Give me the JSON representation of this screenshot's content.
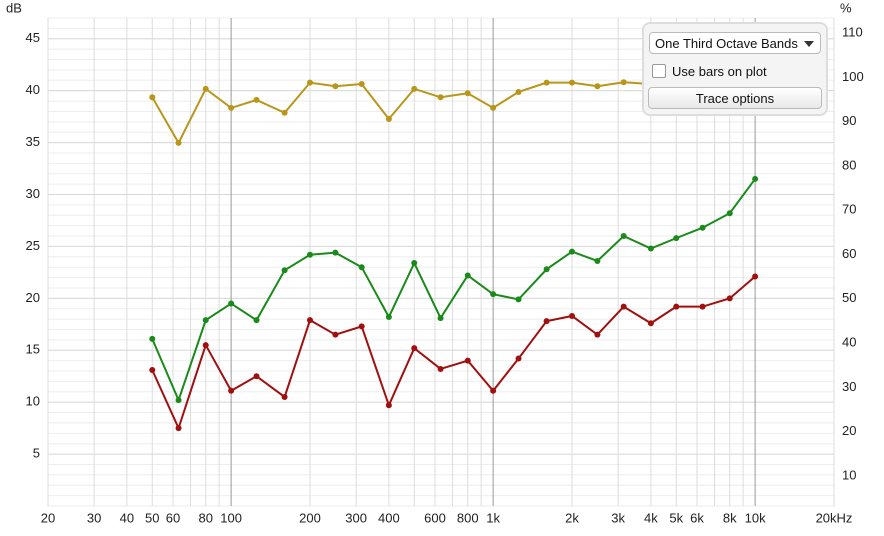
{
  "chart_data": {
    "type": "line",
    "y_label": "dB",
    "y2_label": "%",
    "x": [
      50,
      63,
      80,
      100,
      125,
      160,
      200,
      250,
      315,
      400,
      500,
      630,
      800,
      1000,
      1250,
      1600,
      2000,
      2500,
      3150,
      4000,
      5000,
      6300,
      8000,
      10000
    ],
    "series": [
      {
        "color": "#1a8a1a",
        "values": [
          16.1,
          10.2,
          17.9,
          19.5,
          17.9,
          22.7,
          24.2,
          24.4,
          23.0,
          18.2,
          23.4,
          18.1,
          22.2,
          20.4,
          19.9,
          22.8,
          24.5,
          23.6,
          26.0,
          24.8,
          25.8,
          26.8,
          28.2,
          31.5
        ]
      },
      {
        "color": "#a01010",
        "values": [
          13.1,
          7.5,
          15.5,
          11.1,
          12.5,
          10.5,
          17.9,
          16.5,
          17.3,
          9.7,
          15.2,
          13.2,
          14.0,
          11.1,
          14.2,
          17.8,
          18.3,
          16.5,
          19.2,
          17.6,
          19.2,
          19.2,
          20.0,
          22.1
        ]
      },
      {
        "color": "#b8961a",
        "axis": "y2",
        "values": [
          95.5,
          85.2,
          97.4,
          93.1,
          94.9,
          92.0,
          98.8,
          98.0,
          98.5,
          90.6,
          97.4,
          95.5,
          96.4,
          93.1,
          96.7,
          98.8,
          98.8,
          98.0,
          98.9,
          98.5,
          98.3,
          98.0,
          97.8,
          97.5
        ]
      }
    ],
    "xlim": [
      20,
      20000
    ],
    "log_x": true,
    "xticks": [
      20,
      30,
      40,
      50,
      60,
      80,
      100,
      200,
      300,
      400,
      600,
      800,
      {
        "value": 1000,
        "label": "1k"
      },
      {
        "value": 2000,
        "label": "2k"
      },
      {
        "value": 3000,
        "label": "3k"
      },
      {
        "value": 4000,
        "label": "4k"
      },
      {
        "value": 5000,
        "label": "5k"
      },
      {
        "value": 6000,
        "label": "6k"
      },
      {
        "value": 8000,
        "label": "8k"
      },
      {
        "value": 10000,
        "label": "10k"
      },
      {
        "value": 20000,
        "label": "20kHz"
      }
    ],
    "xminor": [
      70,
      90,
      500,
      700,
      900,
      7000,
      9000
    ],
    "ylim": [
      0,
      47
    ],
    "yticks": [
      5,
      10,
      15,
      20,
      25,
      30,
      35,
      40,
      45
    ],
    "y2lim": [
      3.2,
      113.4
    ],
    "y2ticks": [
      10,
      20,
      30,
      40,
      50,
      60,
      70,
      80,
      90,
      100,
      110
    ],
    "grid": true
  },
  "controls": {
    "dropdown": "One Third Octave Bands",
    "checkbox": "Use bars on plot",
    "button": "Trace options"
  }
}
